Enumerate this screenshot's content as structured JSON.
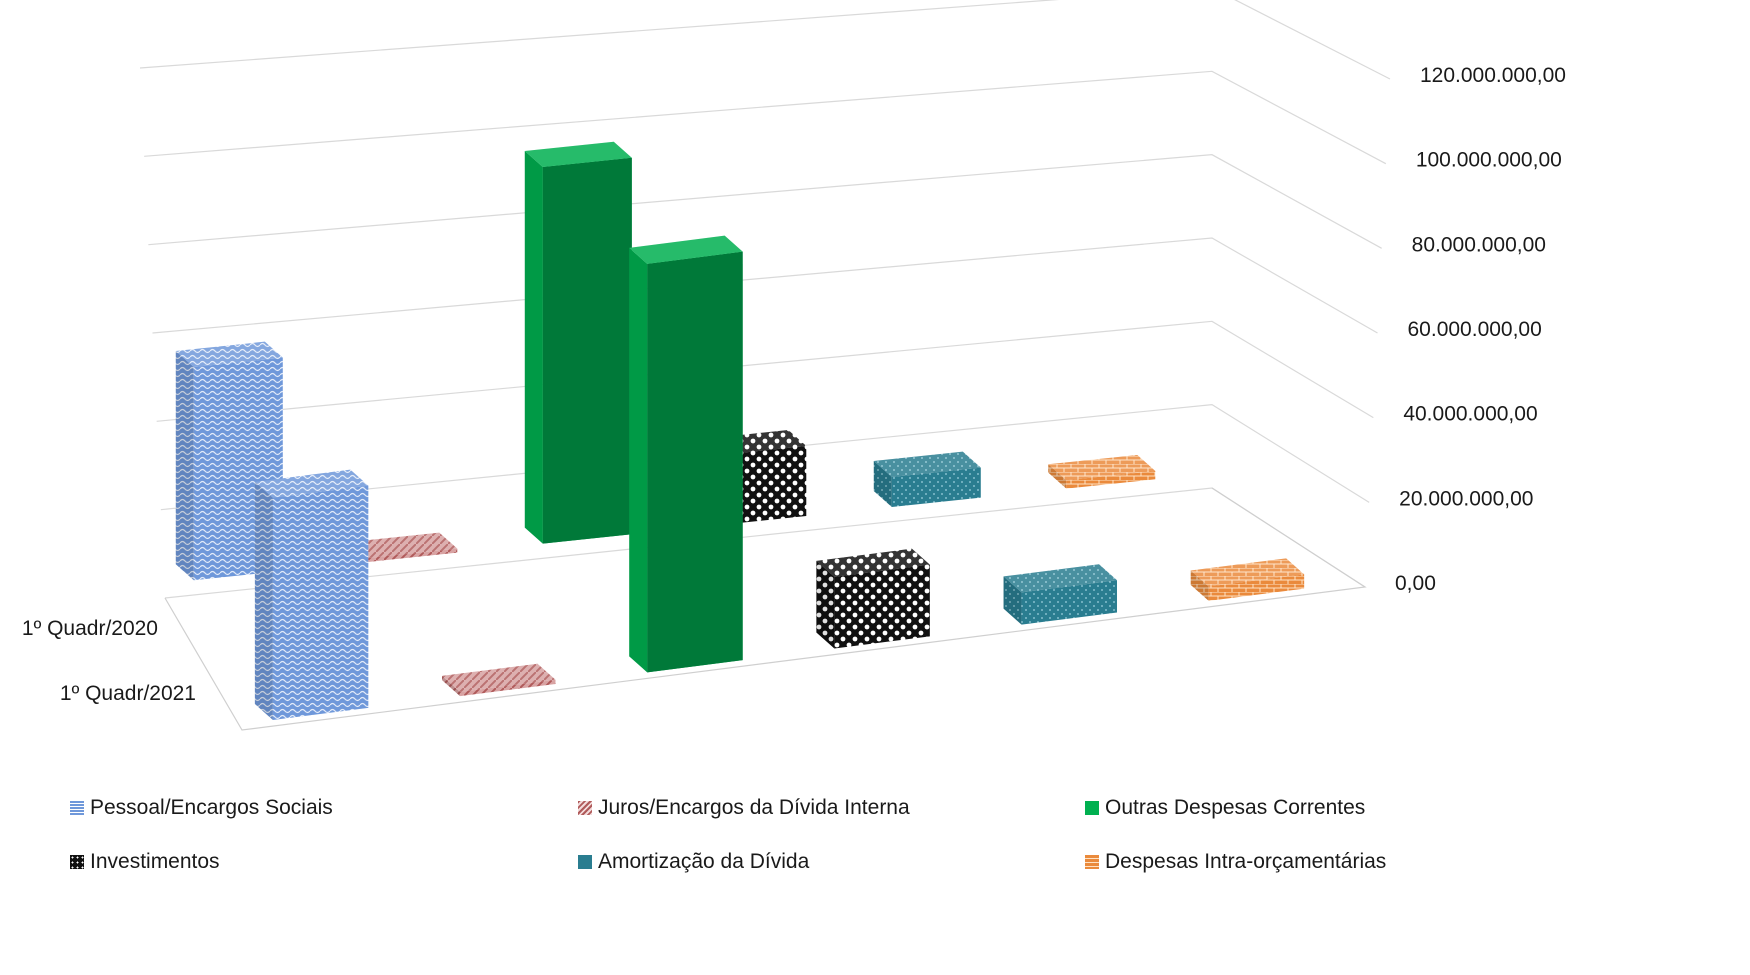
{
  "chart_data": {
    "type": "bar",
    "title": "",
    "xlabel": "",
    "ylabel": "",
    "ylim": [
      0,
      120000000
    ],
    "y_ticks": [
      "0,00",
      "20.000.000,00",
      "40.000.000,00",
      "60.000.000,00",
      "80.000.000,00",
      "100.000.000,00",
      "120.000.000,00"
    ],
    "depth_categories": [
      "1º Quadr/2020",
      "1º Quadr/2021"
    ],
    "series": [
      {
        "name": "Pessoal/Encargos Sociais",
        "values": [
          64000000,
          62000000
        ],
        "color": "#6d97d9",
        "pattern": "waves"
      },
      {
        "name": "Juros/Encargos da Dívida Interna",
        "values": [
          1200000,
          1200000
        ],
        "color": "#c98f8f",
        "pattern": "diagonal"
      },
      {
        "name": "Outras Despesas Correntes",
        "values": [
          113000000,
          114000000
        ],
        "color": "#00a84f",
        "pattern": "solid"
      },
      {
        "name": "Investimentos",
        "values": [
          21000000,
          20000000
        ],
        "color": "#2a2a2a",
        "pattern": "checker"
      },
      {
        "name": "Amortização da Dívida",
        "values": [
          9000000,
          9000000
        ],
        "color": "#2b7a8c",
        "pattern": "dots"
      },
      {
        "name": "Despesas Intra-orçamentárias",
        "values": [
          2500000,
          4000000
        ],
        "color": "#e8843a",
        "pattern": "brick"
      }
    ],
    "legend_position": "bottom",
    "grid": true,
    "chart_style": "3d-bar"
  }
}
